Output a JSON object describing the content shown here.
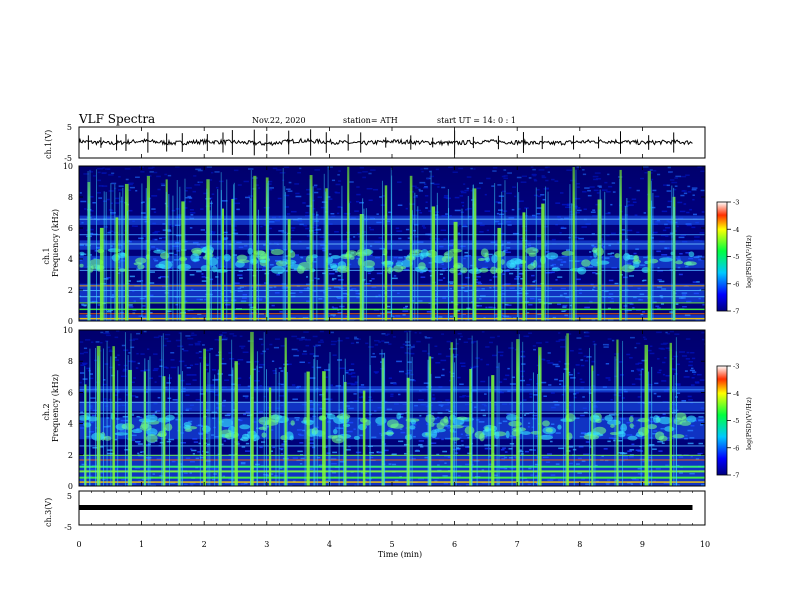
{
  "header": {
    "title": "VLF Spectra",
    "date": "Nov.22, 2020",
    "station": "station= ATH",
    "start": "start  UT =   14: 0  : 1"
  },
  "x_axis": {
    "label": "Time  (min)",
    "range": [
      0,
      10
    ],
    "ticks": [
      "0",
      "1",
      "2",
      "3",
      "4",
      "5",
      "6",
      "7",
      "8",
      "9",
      "10"
    ]
  },
  "panels": {
    "ch1_wave": {
      "ylabel": "ch.1(V)",
      "ticks": [
        "5",
        "-5"
      ],
      "ylim": [
        -5,
        5
      ]
    },
    "ch1_spec": {
      "ylabel1": "ch.1",
      "ylabel2": "Frequency  (kHz)",
      "ticks": [
        "10",
        "8",
        "6",
        "4",
        "2",
        "0"
      ],
      "ylim": [
        0,
        10
      ]
    },
    "ch2_spec": {
      "ylabel1": "ch.2",
      "ylabel2": "Frequency  (kHz)",
      "ticks": [
        "10",
        "8",
        "6",
        "4",
        "2",
        "0"
      ],
      "ylim": [
        0,
        10
      ]
    },
    "ch3_wave": {
      "ylabel": "ch.3(V)",
      "ticks": [
        "5",
        "-5"
      ],
      "ylim": [
        -5,
        5
      ]
    }
  },
  "colorbars": [
    {
      "label": "log(PSD)(V²/Hz)",
      "ticks": [
        "-3",
        "-4",
        "-5",
        "-6",
        "-7"
      ],
      "range": [
        -7,
        -3
      ]
    },
    {
      "label": "log(PSD)(V²/Hz)",
      "ticks": [
        "-3",
        "-4",
        "-5",
        "-6",
        "-7"
      ],
      "range": [
        -7,
        -3
      ]
    }
  ],
  "colors": {
    "spec_bg": "#00007a",
    "stripe_light": "#4fa8ff",
    "burst": "#7dff3a",
    "waveform": "#000000"
  },
  "chart_data": [
    {
      "type": "line",
      "name": "ch.1 waveform",
      "xlabel": "Time  (min)",
      "ylabel": "ch.1(V)",
      "xlim": [
        0,
        9.8
      ],
      "ylim": [
        -5,
        5
      ],
      "x": [
        0,
        0.5,
        1,
        1.5,
        2,
        2.5,
        3,
        3.5,
        4,
        4.5,
        5,
        5.5,
        6,
        6.5,
        7,
        7.5,
        8,
        8.5,
        9,
        9.5,
        9.8
      ],
      "y": [
        0.4,
        -0.3,
        0.5,
        -0.2,
        0.3,
        0.1,
        -0.4,
        0.6,
        0.2,
        -0.3,
        0.4,
        0.0,
        -0.2,
        0.3,
        0.1,
        -0.3,
        0.2,
        0.4,
        -0.1,
        0.2,
        0.0
      ]
    },
    {
      "type": "heatmap",
      "name": "ch.1 spectrogram",
      "xlabel": "Time  (min)",
      "ylabel": "Frequency  (kHz)",
      "xlim": [
        0,
        9.8
      ],
      "ylim": [
        0,
        10
      ],
      "zlim": [
        -7,
        -3
      ],
      "band_kHz": [
        [
          0,
          0.4
        ],
        [
          1.2,
          2.4
        ],
        [
          3.4,
          4.2
        ],
        [
          4.6,
          5.2
        ],
        [
          6.2,
          6.8
        ]
      ],
      "burst_times_min": [
        0.15,
        0.35,
        0.6,
        0.75,
        1.1,
        1.4,
        1.65,
        2.05,
        2.3,
        2.45,
        2.8,
        3.0,
        3.35,
        3.7,
        3.95,
        4.3,
        4.5,
        4.9,
        5.3,
        5.65,
        6.0,
        6.3,
        6.7,
        7.1,
        7.4,
        7.9,
        8.3,
        8.65,
        9.1,
        9.5
      ]
    },
    {
      "type": "heatmap",
      "name": "ch.2 spectrogram",
      "xlabel": "Time  (min)",
      "ylabel": "Frequency  (kHz)",
      "xlim": [
        0,
        9.8
      ],
      "ylim": [
        0,
        10
      ],
      "zlim": [
        -7,
        -3
      ],
      "band_kHz": [
        [
          0,
          2.0
        ],
        [
          3.0,
          4.4
        ],
        [
          4.8,
          5.4
        ],
        [
          6.0,
          6.4
        ]
      ],
      "burst_times_min": [
        0.1,
        0.3,
        0.55,
        0.8,
        1.05,
        1.35,
        1.6,
        2.0,
        2.25,
        2.5,
        2.75,
        3.05,
        3.3,
        3.65,
        3.9,
        4.25,
        4.55,
        4.85,
        5.25,
        5.6,
        5.95,
        6.25,
        6.6,
        7.0,
        7.35,
        7.8,
        8.2,
        8.6,
        9.05,
        9.45
      ]
    },
    {
      "type": "line",
      "name": "ch.3 waveform",
      "xlabel": "Time  (min)",
      "ylabel": "ch.3(V)",
      "xlim": [
        0,
        9.8
      ],
      "ylim": [
        -5,
        5
      ],
      "x": [
        0,
        9.8
      ],
      "y": [
        0,
        0
      ]
    }
  ]
}
